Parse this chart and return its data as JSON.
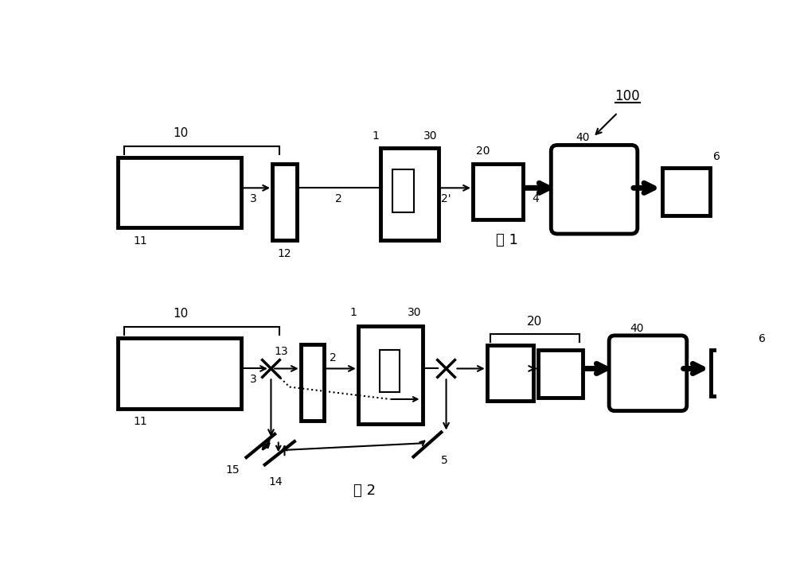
{
  "fig1_label": "图 1",
  "fig2_label": "图 2",
  "label_100": "100"
}
